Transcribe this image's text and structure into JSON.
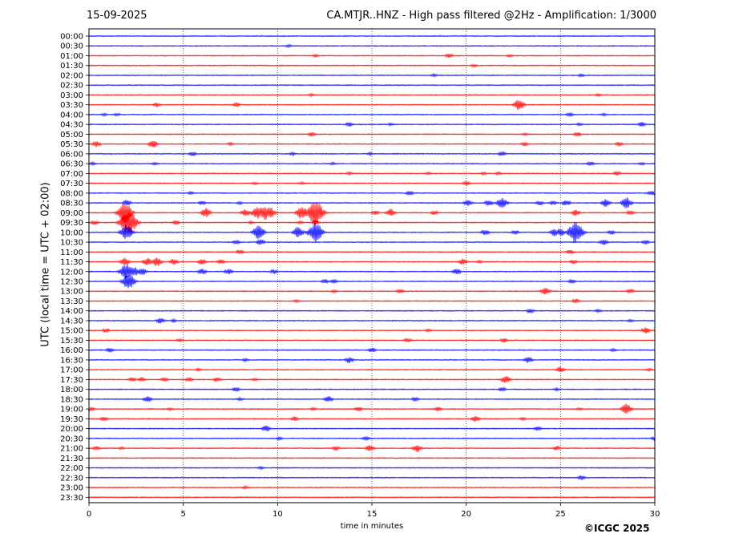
{
  "header": {
    "date": "15-09-2025",
    "title": "CA.MTJR..HNZ - High pass filtered @2Hz - Amplification: 1/3000"
  },
  "copyright": "©ICGC 2025",
  "chart_data": {
    "type": "line",
    "title": "CA.MTJR..HNZ - High pass filtered @2Hz - Amplification: 1/3000",
    "xlabel": "time in minutes",
    "ylabel": "UTC (local time = UTC + 02:00)",
    "xlim": [
      0,
      30
    ],
    "xticks": [
      0,
      5,
      10,
      15,
      20,
      25,
      30
    ],
    "grid_x": [
      5,
      10,
      15,
      20,
      25
    ],
    "colors": {
      "even_hour": "#0000ff",
      "odd_hour": "#ff0000"
    },
    "rows": [
      {
        "label": "00:00",
        "color": "#0000ff",
        "events": []
      },
      {
        "label": "00:30",
        "color": "#0000ff",
        "events": [
          [
            10.6,
            2
          ]
        ]
      },
      {
        "label": "01:00",
        "color": "#ff0000",
        "events": [
          [
            12.0,
            2
          ],
          [
            19.1,
            3
          ],
          [
            22.3,
            2
          ]
        ]
      },
      {
        "label": "01:30",
        "color": "#ff0000",
        "events": [
          [
            20.4,
            2
          ]
        ]
      },
      {
        "label": "02:00",
        "color": "#0000ff",
        "events": [
          [
            18.3,
            2
          ],
          [
            26.1,
            2
          ]
        ]
      },
      {
        "label": "02:30",
        "color": "#0000ff",
        "events": []
      },
      {
        "label": "03:00",
        "color": "#ff0000",
        "events": [
          [
            11.8,
            2
          ],
          [
            27.0,
            2
          ]
        ]
      },
      {
        "label": "03:30",
        "color": "#ff0000",
        "events": [
          [
            3.6,
            3
          ],
          [
            7.8,
            3
          ],
          [
            22.8,
            7
          ]
        ]
      },
      {
        "label": "04:00",
        "color": "#0000ff",
        "events": [
          [
            0.8,
            2
          ],
          [
            1.5,
            2
          ],
          [
            25.5,
            3
          ],
          [
            27.3,
            2
          ]
        ]
      },
      {
        "label": "04:30",
        "color": "#0000ff",
        "events": [
          [
            13.8,
            3
          ],
          [
            16.0,
            2
          ],
          [
            26.0,
            2
          ],
          [
            29.3,
            3
          ]
        ]
      },
      {
        "label": "05:00",
        "color": "#ff0000",
        "events": [
          [
            11.8,
            3
          ],
          [
            23.1,
            2
          ],
          [
            25.9,
            3
          ]
        ]
      },
      {
        "label": "05:30",
        "color": "#ff0000",
        "events": [
          [
            0.4,
            4
          ],
          [
            3.4,
            5
          ],
          [
            7.5,
            2
          ],
          [
            23.1,
            3
          ],
          [
            28.1,
            3
          ]
        ]
      },
      {
        "label": "06:00",
        "color": "#0000ff",
        "events": [
          [
            5.5,
            3
          ],
          [
            10.8,
            2
          ],
          [
            14.9,
            2
          ],
          [
            21.9,
            3
          ]
        ]
      },
      {
        "label": "06:30",
        "color": "#0000ff",
        "events": [
          [
            0.2,
            2
          ],
          [
            3.5,
            2
          ],
          [
            12.9,
            2
          ],
          [
            26.6,
            3
          ],
          [
            29.3,
            2
          ]
        ]
      },
      {
        "label": "07:00",
        "color": "#ff0000",
        "events": [
          [
            13.8,
            2
          ],
          [
            18.0,
            2
          ],
          [
            20.9,
            2
          ],
          [
            21.7,
            2
          ],
          [
            28.0,
            3
          ]
        ]
      },
      {
        "label": "07:30",
        "color": "#ff0000",
        "events": [
          [
            8.8,
            2
          ],
          [
            11.3,
            2
          ],
          [
            20.0,
            3
          ]
        ]
      },
      {
        "label": "08:00",
        "color": "#0000ff",
        "events": [
          [
            5.4,
            2
          ],
          [
            17.0,
            3
          ],
          [
            29.8,
            3
          ]
        ]
      },
      {
        "label": "08:30",
        "color": "#0000ff",
        "events": [
          [
            2.0,
            4
          ],
          [
            6.0,
            3
          ],
          [
            8.0,
            2
          ],
          [
            20.1,
            4
          ],
          [
            21.2,
            4
          ],
          [
            21.9,
            7
          ],
          [
            23.9,
            3
          ],
          [
            24.6,
            3
          ],
          [
            25.3,
            4
          ],
          [
            27.4,
            5
          ],
          [
            28.5,
            7
          ]
        ]
      },
      {
        "label": "09:00",
        "color": "#ff0000",
        "events": [
          [
            1.9,
            13
          ],
          [
            6.2,
            6
          ],
          [
            8.3,
            5
          ],
          [
            8.9,
            8
          ],
          [
            9.3,
            10
          ],
          [
            9.6,
            7
          ],
          [
            11.3,
            9
          ],
          [
            11.7,
            5
          ],
          [
            12.0,
            16
          ],
          [
            15.2,
            3
          ],
          [
            16.0,
            5
          ],
          [
            18.3,
            3
          ],
          [
            25.8,
            4
          ],
          [
            28.7,
            3
          ]
        ]
      },
      {
        "label": "09:30",
        "color": "#ff0000",
        "events": [
          [
            0.3,
            3
          ],
          [
            1.9,
            10
          ],
          [
            2.1,
            16
          ],
          [
            4.6,
            3
          ],
          [
            8.6,
            2
          ],
          [
            11.2,
            2
          ],
          [
            12.0,
            3
          ]
        ]
      },
      {
        "label": "10:00",
        "color": "#0000ff",
        "events": [
          [
            2.0,
            10
          ],
          [
            9.0,
            9
          ],
          [
            11.1,
            7
          ],
          [
            12.0,
            13
          ],
          [
            21.0,
            4
          ],
          [
            22.6,
            3
          ],
          [
            24.7,
            5
          ],
          [
            25.0,
            5
          ],
          [
            25.8,
            14
          ],
          [
            27.7,
            3
          ]
        ]
      },
      {
        "label": "10:30",
        "color": "#0000ff",
        "events": [
          [
            7.8,
            3
          ],
          [
            9.1,
            4
          ],
          [
            27.3,
            4
          ],
          [
            29.5,
            3
          ]
        ]
      },
      {
        "label": "11:00",
        "color": "#ff0000",
        "events": [
          [
            8.0,
            3
          ],
          [
            25.5,
            3
          ]
        ]
      },
      {
        "label": "11:30",
        "color": "#ff0000",
        "events": [
          [
            1.9,
            5
          ],
          [
            3.1,
            5
          ],
          [
            3.6,
            6
          ],
          [
            4.5,
            4
          ],
          [
            6.0,
            4
          ],
          [
            7.0,
            3
          ],
          [
            19.8,
            4
          ],
          [
            20.7,
            2
          ],
          [
            25.7,
            3
          ]
        ]
      },
      {
        "label": "12:00",
        "color": "#0000ff",
        "events": [
          [
            2.0,
            11
          ],
          [
            2.4,
            6
          ],
          [
            2.8,
            5
          ],
          [
            6.0,
            4
          ],
          [
            7.4,
            4
          ],
          [
            9.8,
            3
          ],
          [
            19.5,
            4
          ]
        ]
      },
      {
        "label": "12:30",
        "color": "#0000ff",
        "events": [
          [
            2.1,
            10
          ],
          [
            12.5,
            3
          ],
          [
            13.0,
            3
          ],
          [
            25.6,
            3
          ]
        ]
      },
      {
        "label": "13:00",
        "color": "#ff0000",
        "events": [
          [
            13.0,
            2
          ],
          [
            16.5,
            3
          ],
          [
            24.2,
            5
          ],
          [
            28.7,
            3
          ]
        ]
      },
      {
        "label": "13:30",
        "color": "#ff0000",
        "events": [
          [
            11.0,
            2
          ],
          [
            25.8,
            3
          ]
        ]
      },
      {
        "label": "14:00",
        "color": "#0000ff",
        "events": [
          [
            23.4,
            3
          ],
          [
            27.0,
            2
          ]
        ]
      },
      {
        "label": "14:30",
        "color": "#0000ff",
        "events": [
          [
            3.8,
            4
          ],
          [
            4.5,
            2
          ],
          [
            28.7,
            2
          ]
        ]
      },
      {
        "label": "15:00",
        "color": "#ff0000",
        "events": [
          [
            0.9,
            3
          ],
          [
            18.0,
            2
          ],
          [
            29.5,
            4
          ]
        ]
      },
      {
        "label": "15:30",
        "color": "#ff0000",
        "events": [
          [
            4.8,
            2
          ],
          [
            16.9,
            3
          ],
          [
            22.0,
            3
          ]
        ]
      },
      {
        "label": "16:00",
        "color": "#0000ff",
        "events": [
          [
            1.1,
            3
          ],
          [
            15.0,
            3
          ],
          [
            27.8,
            2
          ]
        ]
      },
      {
        "label": "16:30",
        "color": "#0000ff",
        "events": [
          [
            8.3,
            2
          ],
          [
            13.8,
            4
          ],
          [
            23.3,
            4
          ]
        ]
      },
      {
        "label": "17:00",
        "color": "#ff0000",
        "events": [
          [
            5.8,
            2
          ],
          [
            25.0,
            4
          ],
          [
            29.7,
            2
          ]
        ]
      },
      {
        "label": "17:30",
        "color": "#ff0000",
        "events": [
          [
            2.3,
            3
          ],
          [
            2.8,
            3
          ],
          [
            4.0,
            3
          ],
          [
            5.3,
            3
          ],
          [
            6.8,
            3
          ],
          [
            8.8,
            2
          ],
          [
            22.1,
            5
          ]
        ]
      },
      {
        "label": "18:00",
        "color": "#0000ff",
        "events": [
          [
            7.8,
            3
          ],
          [
            21.9,
            3
          ],
          [
            24.8,
            2
          ]
        ]
      },
      {
        "label": "18:30",
        "color": "#0000ff",
        "events": [
          [
            3.1,
            4
          ],
          [
            8.0,
            2
          ],
          [
            12.7,
            4
          ],
          [
            17.3,
            3
          ]
        ]
      },
      {
        "label": "19:00",
        "color": "#ff0000",
        "events": [
          [
            0.1,
            3
          ],
          [
            4.3,
            2
          ],
          [
            11.9,
            2
          ],
          [
            14.3,
            3
          ],
          [
            18.5,
            3
          ],
          [
            26.0,
            2
          ],
          [
            28.5,
            7
          ]
        ]
      },
      {
        "label": "19:30",
        "color": "#ff0000",
        "events": [
          [
            0.8,
            3
          ],
          [
            10.9,
            3
          ],
          [
            20.5,
            4
          ],
          [
            23.0,
            2
          ]
        ]
      },
      {
        "label": "20:00",
        "color": "#0000ff",
        "events": [
          [
            9.4,
            4
          ],
          [
            23.8,
            3
          ]
        ]
      },
      {
        "label": "20:30",
        "color": "#0000ff",
        "events": [
          [
            10.1,
            2
          ],
          [
            14.7,
            3
          ],
          [
            30.0,
            3
          ]
        ]
      },
      {
        "label": "21:00",
        "color": "#ff0000",
        "events": [
          [
            0.4,
            3
          ],
          [
            1.7,
            2
          ],
          [
            13.1,
            3
          ],
          [
            14.9,
            4
          ],
          [
            17.4,
            5
          ],
          [
            24.8,
            3
          ]
        ]
      },
      {
        "label": "21:30",
        "color": "#ff0000",
        "events": []
      },
      {
        "label": "22:00",
        "color": "#0000ff",
        "events": [
          [
            9.1,
            2
          ]
        ]
      },
      {
        "label": "22:30",
        "color": "#0000ff",
        "events": [
          [
            26.1,
            3
          ]
        ]
      },
      {
        "label": "23:00",
        "color": "#ff0000",
        "events": [
          [
            8.3,
            2
          ]
        ]
      },
      {
        "label": "23:30",
        "color": "#ff0000",
        "events": []
      }
    ]
  }
}
